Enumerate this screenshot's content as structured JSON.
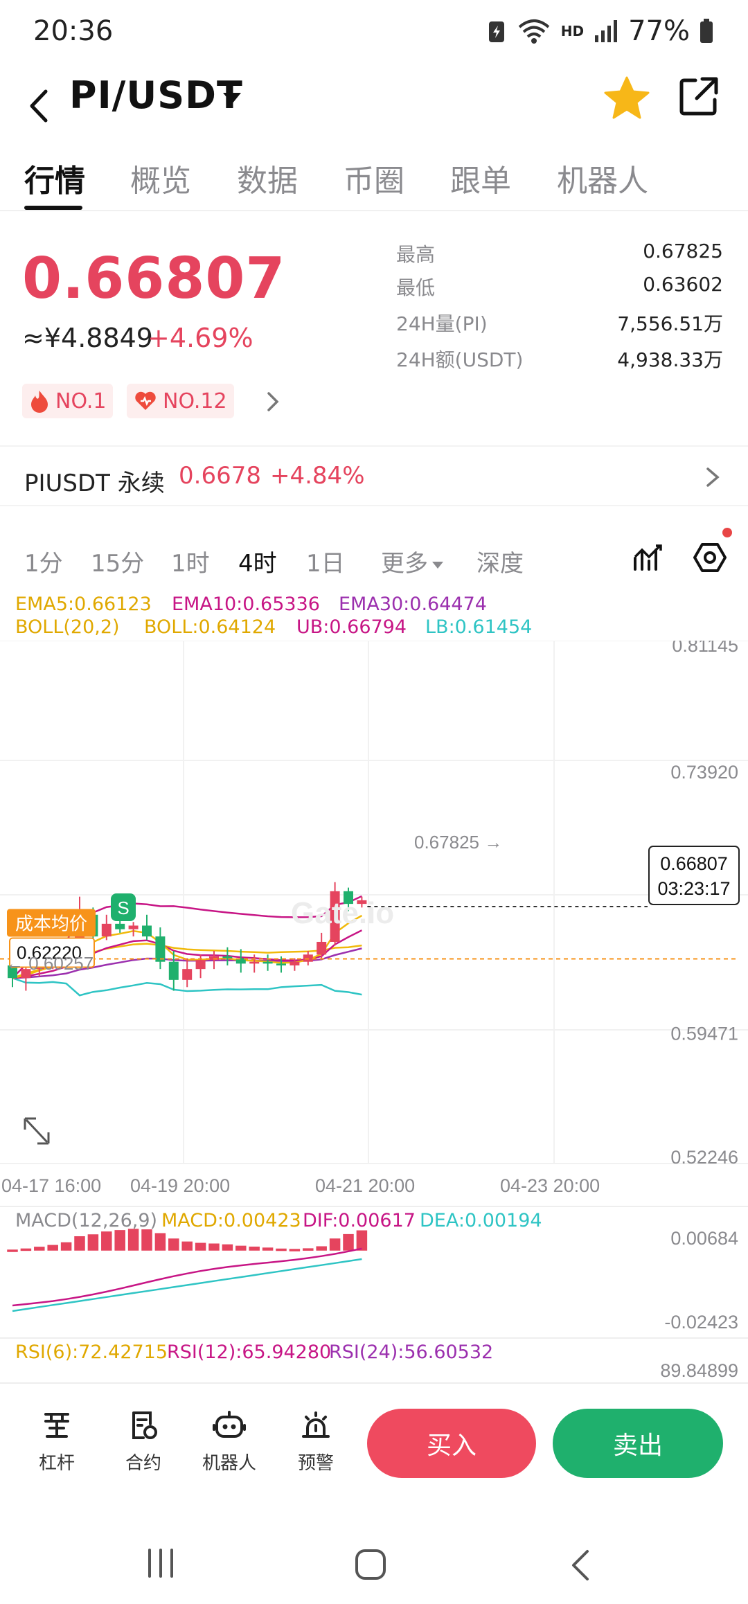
{
  "status_bar": {
    "time": "20:36",
    "hd": "HD",
    "battery_pct": "77%"
  },
  "header": {
    "pair": "PI/USDT"
  },
  "tabs": [
    {
      "label": "行情",
      "active": true
    },
    {
      "label": "概览"
    },
    {
      "label": "数据"
    },
    {
      "label": "币圈"
    },
    {
      "label": "跟单"
    },
    {
      "label": "机器人"
    }
  ],
  "ticker": {
    "last_price": "0.66807",
    "approx_cny": "≈¥4.8849",
    "change_pct": "+4.69%",
    "badges": [
      "NO.1",
      "NO.12"
    ],
    "stats": [
      {
        "label": "最高",
        "value": "0.67825"
      },
      {
        "label": "最低",
        "value": "0.63602"
      },
      {
        "label": "24H量(PI)",
        "value": "7,556.51万"
      },
      {
        "label": "24H额(USDT)",
        "value": "4,938.33万"
      }
    ]
  },
  "perpetual": {
    "name": "PIUSDT 永续",
    "price": "0.6678",
    "change": "+4.84%"
  },
  "intervals": [
    {
      "label": "1分"
    },
    {
      "label": "15分"
    },
    {
      "label": "1时"
    },
    {
      "label": "4时",
      "active": true
    },
    {
      "label": "1日"
    },
    {
      "label": "更多"
    },
    {
      "label": "深度"
    }
  ],
  "indicators": {
    "ema5": "EMA5:0.66123",
    "ema10": "EMA10:0.65336",
    "ema30": "EMA30:0.64474",
    "boll": "BOLL(20,2)",
    "boll_mid": "BOLL:0.64124",
    "ub": "UB:0.66794",
    "lb": "LB:0.61454",
    "macd_label": "MACD(12,26,9)",
    "macd": "MACD:0.00423",
    "dif": "DIF:0.00617",
    "dea": "DEA:0.00194",
    "rsi6": "RSI(6):72.42715",
    "rsi12": "RSI(12):65.94280",
    "rsi24": "RSI(24):56.60532"
  },
  "colors": {
    "up": "#e5445e",
    "down": "#1fb06d",
    "ema5": "#f0b90b",
    "ema10": "#c71585",
    "ema30": "#9b2fae",
    "lb": "#2ec4c4",
    "cost": "#f7931a"
  },
  "chart_data": {
    "type": "candlestick",
    "y_ticks": [
      "0.81145",
      "0.73920",
      "0.59471",
      "0.52246"
    ],
    "ylim": [
      0.5225,
      0.8115
    ],
    "x_ticks": [
      "04-17 16:00",
      "04-19 20:00",
      "04-21 20:00",
      "04-23 20:00"
    ],
    "high_marker": "0.67825 →",
    "low_marker": "← 0.60257",
    "current_price": "0.66807",
    "countdown": "03:23:17",
    "cost_label": "成本均价",
    "cost_value": "0.62220",
    "signal_marker": "S",
    "watermark": "Gate.io",
    "candles": [
      {
        "o": 0.632,
        "h": 0.64,
        "l": 0.62,
        "c": 0.625
      },
      {
        "o": 0.625,
        "h": 0.632,
        "l": 0.618,
        "c": 0.63
      },
      {
        "o": 0.63,
        "h": 0.638,
        "l": 0.626,
        "c": 0.634
      },
      {
        "o": 0.634,
        "h": 0.64,
        "l": 0.63,
        "c": 0.636
      },
      {
        "o": 0.636,
        "h": 0.646,
        "l": 0.633,
        "c": 0.642
      },
      {
        "o": 0.642,
        "h": 0.67,
        "l": 0.638,
        "c": 0.66
      },
      {
        "o": 0.66,
        "h": 0.664,
        "l": 0.645,
        "c": 0.648
      },
      {
        "o": 0.648,
        "h": 0.66,
        "l": 0.646,
        "c": 0.655
      },
      {
        "o": 0.655,
        "h": 0.662,
        "l": 0.65,
        "c": 0.652
      },
      {
        "o": 0.652,
        "h": 0.656,
        "l": 0.648,
        "c": 0.654
      },
      {
        "o": 0.654,
        "h": 0.66,
        "l": 0.646,
        "c": 0.648
      },
      {
        "o": 0.648,
        "h": 0.653,
        "l": 0.63,
        "c": 0.634
      },
      {
        "o": 0.634,
        "h": 0.64,
        "l": 0.618,
        "c": 0.624
      },
      {
        "o": 0.624,
        "h": 0.636,
        "l": 0.62,
        "c": 0.63
      },
      {
        "o": 0.63,
        "h": 0.638,
        "l": 0.625,
        "c": 0.635
      },
      {
        "o": 0.635,
        "h": 0.64,
        "l": 0.63,
        "c": 0.637
      },
      {
        "o": 0.637,
        "h": 0.642,
        "l": 0.632,
        "c": 0.636
      },
      {
        "o": 0.636,
        "h": 0.641,
        "l": 0.628,
        "c": 0.633
      },
      {
        "o": 0.633,
        "h": 0.638,
        "l": 0.628,
        "c": 0.634
      },
      {
        "o": 0.634,
        "h": 0.638,
        "l": 0.629,
        "c": 0.633
      },
      {
        "o": 0.633,
        "h": 0.637,
        "l": 0.628,
        "c": 0.632
      },
      {
        "o": 0.632,
        "h": 0.636,
        "l": 0.629,
        "c": 0.634
      },
      {
        "o": 0.634,
        "h": 0.64,
        "l": 0.632,
        "c": 0.638
      },
      {
        "o": 0.638,
        "h": 0.65,
        "l": 0.636,
        "c": 0.645
      },
      {
        "o": 0.645,
        "h": 0.678,
        "l": 0.643,
        "c": 0.673
      },
      {
        "o": 0.673,
        "h": 0.675,
        "l": 0.662,
        "c": 0.666
      },
      {
        "o": 0.666,
        "h": 0.67,
        "l": 0.664,
        "c": 0.668
      }
    ],
    "macd_ticks": [
      "0.00684",
      "-0.02423"
    ],
    "rsi_tick": "89.84899"
  },
  "bottom_bar": {
    "items": [
      {
        "label": "杠杆",
        "icon": "leverage-icon"
      },
      {
        "label": "合约",
        "icon": "contract-icon"
      },
      {
        "label": "机器人",
        "icon": "robot-icon"
      },
      {
        "label": "预警",
        "icon": "alert-icon"
      }
    ],
    "buy": "买入",
    "sell": "卖出"
  }
}
